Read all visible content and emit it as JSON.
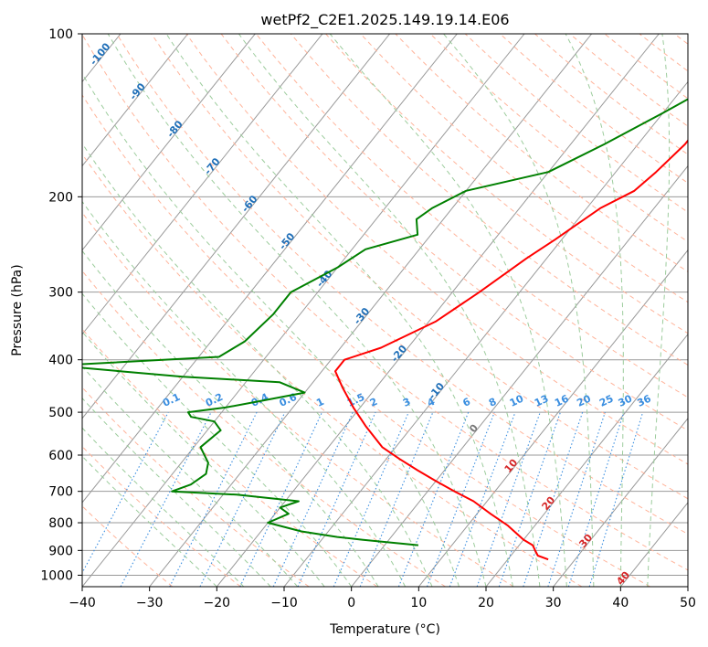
{
  "chart_data": {
    "type": "line",
    "title": "wetPf2_C2E1.2025.149.19.14.E06",
    "xlabel": "Temperature (°C)",
    "ylabel": "Pressure (hPa)",
    "xlim": [
      -40,
      50
    ],
    "ylim": [
      1050,
      100
    ],
    "y_scale": "log",
    "grid": true,
    "x_ticks": [
      -40,
      -30,
      -20,
      -10,
      0,
      10,
      20,
      30,
      40,
      50
    ],
    "y_ticks": [
      100,
      200,
      300,
      400,
      500,
      600,
      700,
      800,
      900,
      1000
    ],
    "series": [
      {
        "role": "temperature",
        "color": "#ff0000",
        "points": [
          [
            4,
            100
          ],
          [
            2,
            110
          ],
          [
            -2,
            125
          ],
          [
            -3,
            140
          ],
          [
            -3,
            160
          ],
          [
            -4,
            180
          ],
          [
            -5,
            195
          ],
          [
            -8,
            210
          ],
          [
            -11,
            240
          ],
          [
            -13,
            260
          ],
          [
            -16,
            300
          ],
          [
            -19,
            340
          ],
          [
            -24,
            380
          ],
          [
            -28,
            400
          ],
          [
            -28,
            420
          ],
          [
            -25,
            450
          ],
          [
            -21,
            490
          ],
          [
            -17,
            530
          ],
          [
            -12,
            580
          ],
          [
            -8,
            610
          ],
          [
            -4,
            640
          ],
          [
            0,
            670
          ],
          [
            4,
            700
          ],
          [
            8,
            730
          ],
          [
            12,
            770
          ],
          [
            16,
            810
          ],
          [
            20,
            860
          ],
          [
            22,
            880
          ],
          [
            23,
            900
          ],
          [
            24,
            920
          ],
          [
            26,
            935
          ]
        ]
      },
      {
        "role": "dewpoint",
        "color": "#008000",
        "points": [
          [
            0,
            100
          ],
          [
            -3,
            110
          ],
          [
            -6,
            125
          ],
          [
            -10,
            140
          ],
          [
            -15,
            160
          ],
          [
            -20,
            180
          ],
          [
            -30,
            195
          ],
          [
            -33,
            210
          ],
          [
            -34,
            220
          ],
          [
            -32,
            235
          ],
          [
            -38,
            250
          ],
          [
            -40,
            270
          ],
          [
            -44,
            300
          ],
          [
            -44,
            330
          ],
          [
            -45,
            370
          ],
          [
            -47,
            395
          ],
          [
            -70,
            410
          ],
          [
            -60,
            420
          ],
          [
            -50,
            430
          ],
          [
            -35,
            440
          ],
          [
            -30,
            460
          ],
          [
            -35,
            475
          ],
          [
            -40,
            490
          ],
          [
            -45,
            500
          ],
          [
            -44,
            510
          ],
          [
            -40,
            520
          ],
          [
            -38,
            540
          ],
          [
            -39,
            580
          ],
          [
            -36,
            620
          ],
          [
            -35,
            650
          ],
          [
            -36,
            680
          ],
          [
            -38,
            700
          ],
          [
            -28,
            710
          ],
          [
            -18,
            730
          ],
          [
            -20,
            750
          ],
          [
            -18,
            770
          ],
          [
            -20,
            800
          ],
          [
            -14,
            830
          ],
          [
            -8,
            850
          ],
          [
            -4,
            860
          ],
          [
            5,
            880
          ]
        ]
      }
    ],
    "isotherm_labels": [
      "-100",
      "-90",
      "-80",
      "-70",
      "-60",
      "-50",
      "-40",
      "-30",
      "-20",
      "-10",
      "0",
      "10",
      "20",
      "30",
      "40"
    ],
    "mixing_ratio_labels": [
      "0.1",
      "0.2",
      "0.4",
      "0.6",
      "1",
      "1.5",
      "2",
      "3",
      "4",
      "6",
      "8",
      "10",
      "13",
      "16",
      "20",
      "25",
      "30",
      "36"
    ],
    "reference_line_colors": {
      "isotherm": "#999999",
      "dry_adiabat": "#ffb49b",
      "moist_adiabat": "#9ccc9c",
      "mixing_ratio": "#3a8ee0",
      "isotherm_label": "#1f6fb8",
      "isotherm_label_warm": "#d62728",
      "isotherm_label_zero": "#777777"
    }
  }
}
